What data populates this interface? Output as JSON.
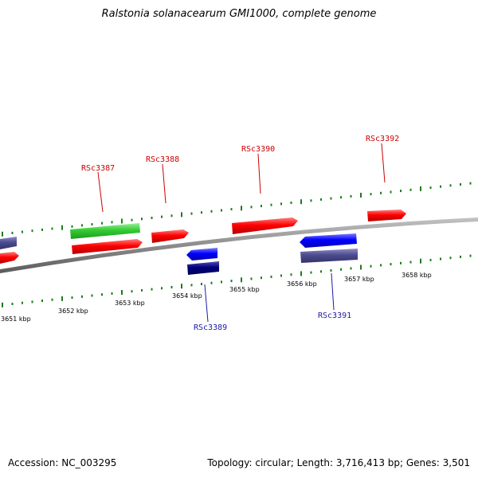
{
  "title": "Ralstonia solanacearum GMI1000, complete genome",
  "footer": {
    "accession": "Accession: NC_003295",
    "summary": "Topology: circular; Length: 3,716,413 bp; Genes: 3,501"
  },
  "colors": {
    "background": "#ffffff",
    "backbone": "#8c8c8c",
    "tick": "#1f7a1f",
    "forward_cds": "#ff0000",
    "reverse_cds": "#0000ff",
    "dark_reverse_cds": "#000080",
    "slate_feature": "#4b4b8f",
    "green_feature": "#33cc33",
    "forward_label": "#cc0000",
    "reverse_label": "#1a1aa6"
  },
  "scale_labels": [
    "3651 kbp",
    "3652 kbp",
    "3653 kbp",
    "3654 kbp",
    "3655 kbp",
    "3656 kbp",
    "3657 kbp",
    "3658 kbp"
  ],
  "gene_labels": {
    "forward": [
      "RSc3387",
      "RSc3388",
      "RSc3390",
      "RSc3392"
    ],
    "reverse": [
      "RSc3389",
      "RSc3391"
    ]
  }
}
